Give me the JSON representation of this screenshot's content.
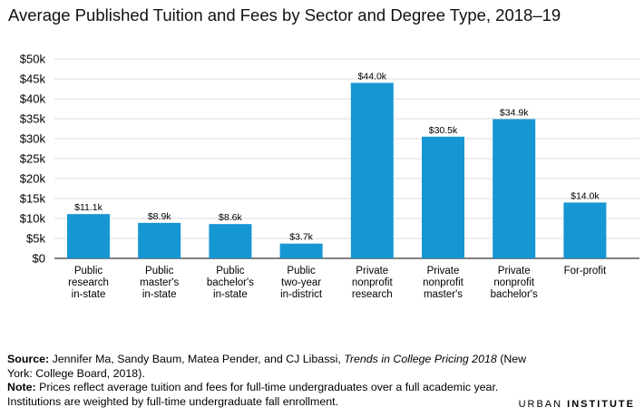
{
  "chart_data": {
    "type": "bar",
    "title": "Average Published Tuition and Fees by Sector and Degree Type, 2018–19",
    "categories": [
      [
        "Public",
        "research",
        "in-state"
      ],
      [
        "Public",
        "master's",
        "in-state"
      ],
      [
        "Public",
        "bachelor's",
        "in-state"
      ],
      [
        "Public",
        "two-year",
        "in-district"
      ],
      [
        "Private",
        "nonprofit",
        "research"
      ],
      [
        "Private",
        "nonprofit",
        "master's"
      ],
      [
        "Private",
        "nonprofit",
        "bachelor's"
      ],
      [
        "For-profit"
      ]
    ],
    "values": [
      11.1,
      8.9,
      8.6,
      3.7,
      44.0,
      30.5,
      34.9,
      14.0
    ],
    "data_labels": [
      "$11.1k",
      "$8.9k",
      "$8.6k",
      "$3.7k",
      "$44.0k",
      "$30.5k",
      "$34.9k",
      "$14.0k"
    ],
    "yticks": [
      0,
      5,
      10,
      15,
      20,
      25,
      30,
      35,
      40,
      45,
      50
    ],
    "ytick_labels": [
      "$0",
      "$5k",
      "$10k",
      "$15k",
      "$20k",
      "$25k",
      "$30k",
      "$35k",
      "$40k",
      "$45k",
      "$50k"
    ],
    "ylim": [
      0,
      50
    ],
    "grid": true,
    "bar_color": "#1696d2",
    "grid_color": "#dedede",
    "axis_color": "#000000"
  },
  "footer": {
    "source_label": "Source:",
    "source_text_1": " Jennifer Ma, Sandy Baum, Matea Pender, and CJ Libassi, ",
    "source_italic": "Trends in College Pricing 2018",
    "source_text_2": " (New York: College Board, 2018).",
    "note_label": "Note:",
    "note_text": " Prices reflect average tuition and fees for full-time undergraduates over a full academic year. Institutions are weighted by full-time undergraduate fall enrollment."
  },
  "brand": {
    "first": "URBAN",
    "second": "INSTITUTE"
  }
}
